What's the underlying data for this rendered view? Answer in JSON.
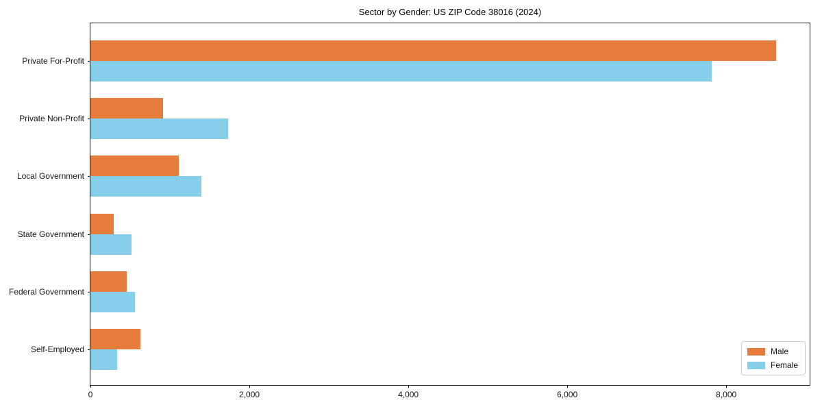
{
  "title": "Sector by Gender: US ZIP Code 38016 (2024)",
  "chart_data": {
    "type": "bar",
    "orientation": "horizontal",
    "title": "Sector by Gender: US ZIP Code 38016 (2024)",
    "categories": [
      "Private For-Profit",
      "Private Non-Profit",
      "Local Government",
      "State Government",
      "Federal Government",
      "Self-Employed"
    ],
    "series": [
      {
        "name": "Male",
        "color": "#e67d3c",
        "values": [
          8630,
          910,
          1110,
          290,
          460,
          630
        ]
      },
      {
        "name": "Female",
        "color": "#87ceeb",
        "values": [
          7820,
          1730,
          1400,
          520,
          560,
          340
        ]
      }
    ],
    "xlabel": "",
    "ylabel": "",
    "xlim": [
      0,
      9050
    ],
    "xticks": {
      "values": [
        0,
        2000,
        4000,
        6000,
        8000
      ],
      "labels": [
        "0",
        "2,000",
        "4,000",
        "6,000",
        "8,000"
      ]
    },
    "legend": {
      "position": "lower right",
      "entries": [
        "Male",
        "Female"
      ]
    },
    "grid": false,
    "axis_color": "#141414",
    "background": "#ffffff"
  }
}
